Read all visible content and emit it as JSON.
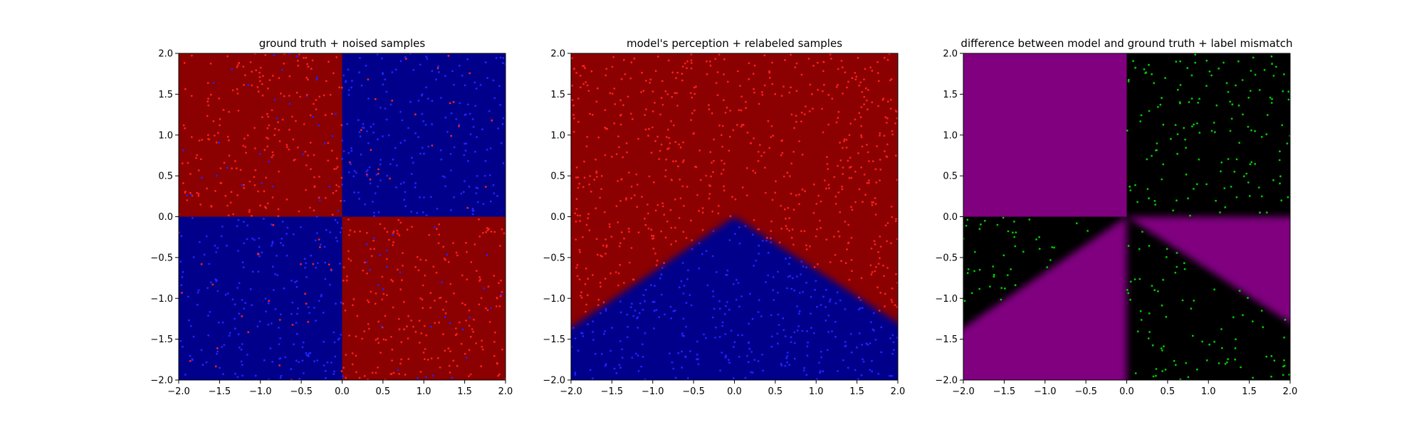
{
  "chart_data": [
    {
      "type": "scatter",
      "title": "ground truth + noised samples",
      "xlim": [
        -2.0,
        2.0
      ],
      "ylim": [
        -2.0,
        2.0
      ],
      "xticks": [
        "−2.0",
        "−1.5",
        "−1.0",
        "−0.5",
        "0.0",
        "0.5",
        "1.0",
        "1.5",
        "2.0"
      ],
      "yticks": [
        "−2.0",
        "−1.5",
        "−1.0",
        "−0.5",
        "0.0",
        "0.5",
        "1.0",
        "1.5",
        "2.0"
      ],
      "background": {
        "kind": "quadrants",
        "regions": [
          {
            "x": [
              -2,
              0
            ],
            "y": [
              0,
              2
            ],
            "color": "#8b0000"
          },
          {
            "x": [
              0,
              2
            ],
            "y": [
              0,
              2
            ],
            "color": "#00008b"
          },
          {
            "x": [
              -2,
              0
            ],
            "y": [
              -2,
              0
            ],
            "color": "#00008b"
          },
          {
            "x": [
              0,
              2
            ],
            "y": [
              -2,
              0
            ],
            "color": "#8b0000"
          }
        ]
      },
      "points": {
        "count": 1000,
        "distribution": "uniform",
        "range": [
          -2.0,
          2.0
        ],
        "label_rule": "sign-product",
        "noise_rate": 0.12,
        "colors": {
          "red": "#ff1f1f",
          "blue": "#2323ff"
        }
      }
    },
    {
      "type": "scatter",
      "title": "model's perception + relabeled samples",
      "xlim": [
        -2.0,
        2.0
      ],
      "ylim": [
        -2.0,
        2.0
      ],
      "xticks": [
        "−2.0",
        "−1.5",
        "−1.0",
        "−0.5",
        "0.0",
        "0.5",
        "1.0",
        "1.5",
        "2.0"
      ],
      "yticks": [
        "−2.0",
        "−1.5",
        "−1.0",
        "−0.5",
        "0.0",
        "0.5",
        "1.0",
        "1.5",
        "2.0"
      ],
      "background": {
        "kind": "wedge",
        "apex": [
          0.0,
          0.0
        ],
        "slope_left": 0.68,
        "slope_right": -0.65,
        "inside_color": "#00008b",
        "outside_color": "#8b0000"
      },
      "points": {
        "count": 1000,
        "distribution": "uniform",
        "range": [
          -2.0,
          2.0
        ],
        "label_rule": "model",
        "colors": {
          "red": "#ff1f1f",
          "blue": "#2323ff"
        }
      }
    },
    {
      "type": "scatter",
      "title": "difference between model and ground truth + label mismatch",
      "xlim": [
        -2.0,
        2.0
      ],
      "ylim": [
        -2.0,
        2.0
      ],
      "xticks": [
        "−2.0",
        "−1.5",
        "−1.0",
        "−0.5",
        "0.0",
        "0.5",
        "1.0",
        "1.5",
        "2.0"
      ],
      "yticks": [
        "−2.0",
        "−1.5",
        "−1.0",
        "−0.5",
        "0.0",
        "0.5",
        "1.0",
        "1.5",
        "2.0"
      ],
      "background": {
        "kind": "difference",
        "match_color": "#000000",
        "mismatch_color": "#800080"
      },
      "points": {
        "count": 1000,
        "distribution": "uniform",
        "range": [
          -2.0,
          2.0
        ],
        "label_rule": "mismatch-only",
        "colors": {
          "mismatch": "#00cc00"
        }
      }
    }
  ]
}
